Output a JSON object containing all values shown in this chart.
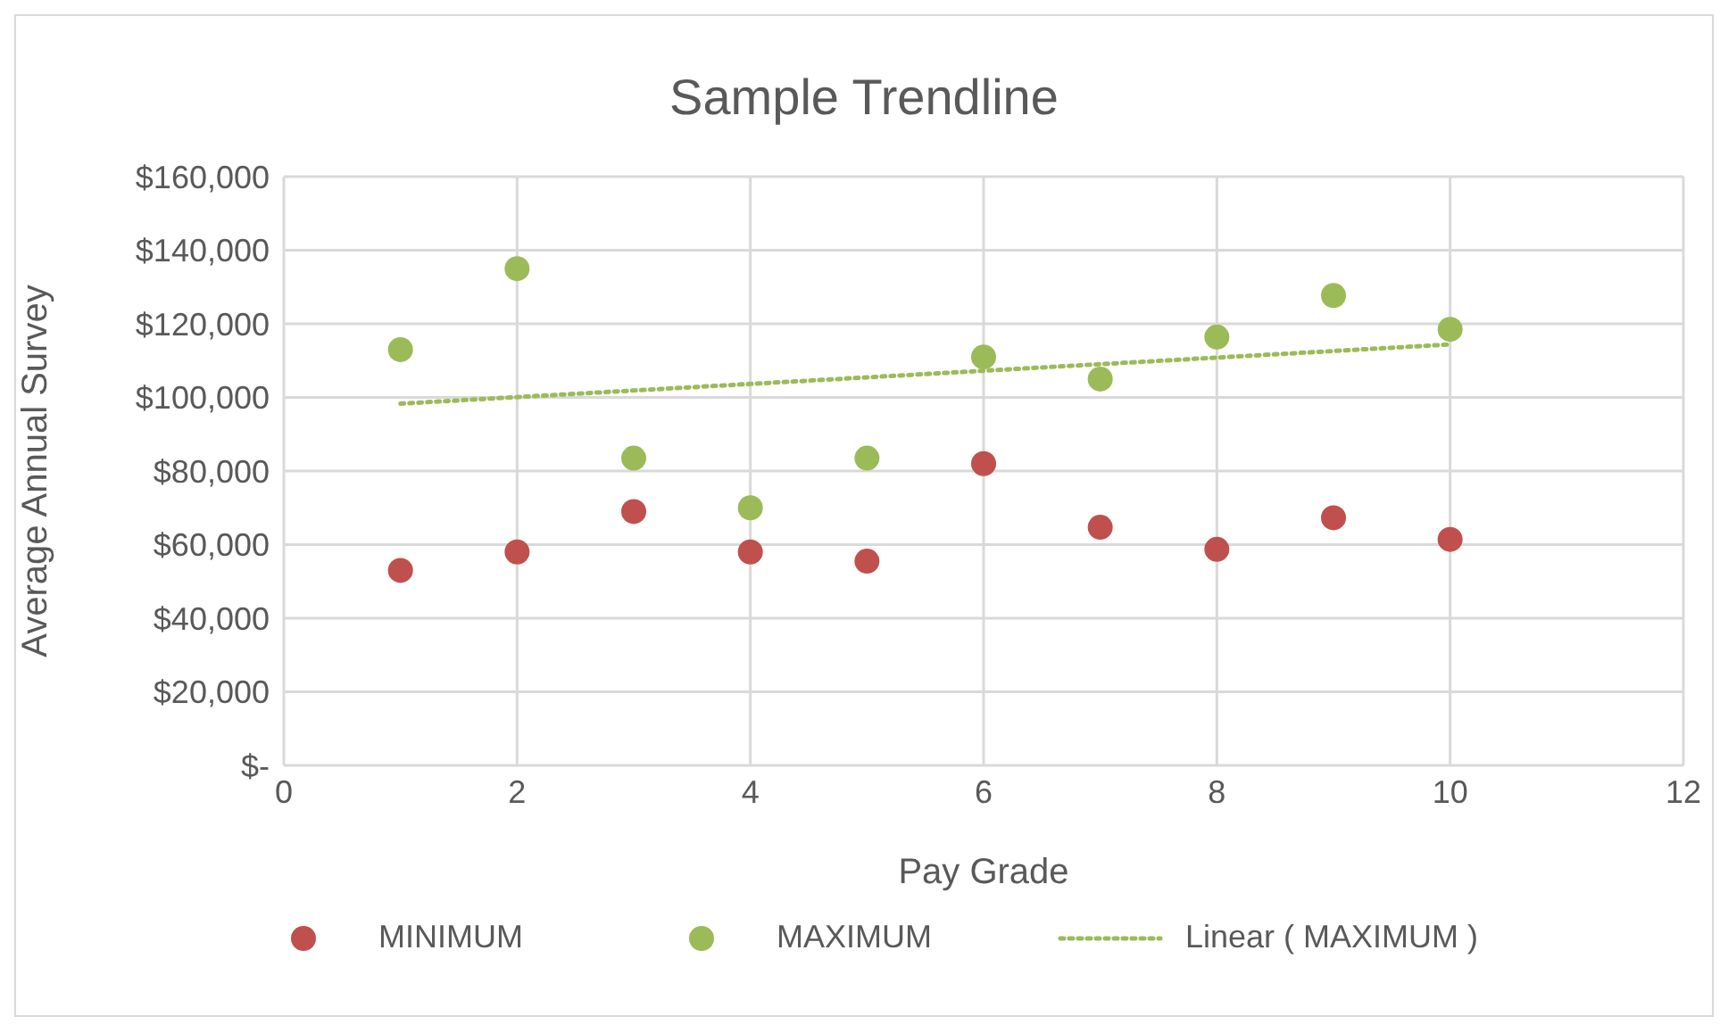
{
  "chart_data": {
    "type": "scatter",
    "title": "Sample Trendline",
    "xlabel": "Pay Grade",
    "ylabel": "Average Annual Survey",
    "xlim": [
      0,
      12
    ],
    "xticks": [
      0,
      2,
      4,
      6,
      8,
      10,
      12
    ],
    "ylim": [
      0,
      160000
    ],
    "yticks": [
      {
        "value": 0,
        "label": "$-"
      },
      {
        "value": 20000,
        "label": "$20,000"
      },
      {
        "value": 40000,
        "label": "$40,000"
      },
      {
        "value": 60000,
        "label": "$60,000"
      },
      {
        "value": 80000,
        "label": "$80,000"
      },
      {
        "value": 100000,
        "label": "$100,000"
      },
      {
        "value": 120000,
        "label": "$120,000"
      },
      {
        "value": 140000,
        "label": "$140,000"
      },
      {
        "value": 160000,
        "label": "$160,000"
      }
    ],
    "grid": true,
    "legend": "bottom",
    "marker": "circle",
    "x": [
      1,
      2,
      3,
      4,
      5,
      6,
      7,
      8,
      9,
      10
    ],
    "series": [
      {
        "name": "MINIMUM",
        "color": "#c0504d",
        "values": [
          53000,
          58000,
          69000,
          58000,
          55500,
          82000,
          64700,
          58700,
          67300,
          61400
        ]
      },
      {
        "name": "MAXIMUM",
        "color": "#9bbb59",
        "values": [
          113000,
          135000,
          83500,
          70000,
          83500,
          111000,
          105000,
          116400,
          127700,
          118500
        ]
      },
      {
        "name": "Linear ( MAXIMUM )",
        "type": "line",
        "color": "#9bbb59",
        "line_style": "dotted",
        "marker": "none",
        "x": [
          1,
          10
        ],
        "values": [
          98300,
          114400
        ]
      }
    ]
  }
}
